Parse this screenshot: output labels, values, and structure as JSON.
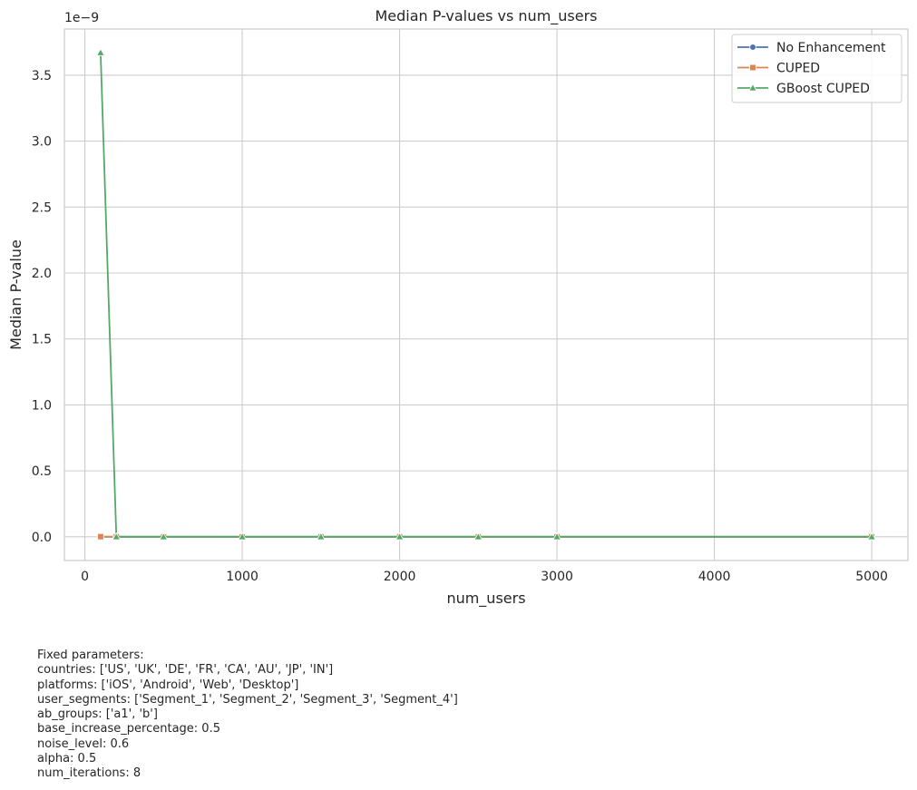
{
  "chart_data": {
    "type": "line",
    "title": "Median P-values vs num_users",
    "xlabel": "num_users",
    "ylabel": "Median P-value",
    "y_scale_label": "1e−9",
    "x_ticks": [
      "0",
      "1000",
      "2000",
      "3000",
      "4000",
      "5000"
    ],
    "y_ticks": [
      "0.0",
      "0.5",
      "1.0",
      "1.5",
      "2.0",
      "2.5",
      "3.0",
      "3.5"
    ],
    "xlim": [
      -130,
      5230
    ],
    "ylim": [
      -0.18,
      3.85
    ],
    "grid": true,
    "legend_position": "top-right",
    "x": [
      100,
      200,
      500,
      1000,
      1500,
      2000,
      2500,
      3000,
      5000
    ],
    "series": [
      {
        "name": "No Enhancement",
        "color": "#4c72b0",
        "marker": "circle",
        "values": [
          0,
          0,
          0,
          0,
          0,
          0,
          0,
          0,
          0
        ]
      },
      {
        "name": "CUPED",
        "color": "#dd8452",
        "marker": "square",
        "values": [
          0.001,
          0.0,
          0,
          0,
          0,
          0,
          0,
          0,
          0
        ]
      },
      {
        "name": "GBoost CUPED",
        "color": "#55a868",
        "marker": "triangle",
        "values": [
          3.67,
          0.0,
          0,
          0,
          0,
          0,
          0,
          0,
          0
        ]
      }
    ]
  },
  "fixed_parameters": {
    "heading": "Fixed parameters:",
    "lines": [
      "countries: ['US', 'UK', 'DE', 'FR', 'CA', 'AU', 'JP', 'IN']",
      "platforms: ['iOS', 'Android', 'Web', 'Desktop']",
      "user_segments: ['Segment_1', 'Segment_2', 'Segment_3', 'Segment_4']",
      "ab_groups: ['a1', 'b']",
      "base_increase_percentage: 0.5",
      "noise_level: 0.6",
      "alpha: 0.5",
      "num_iterations: 8"
    ]
  }
}
